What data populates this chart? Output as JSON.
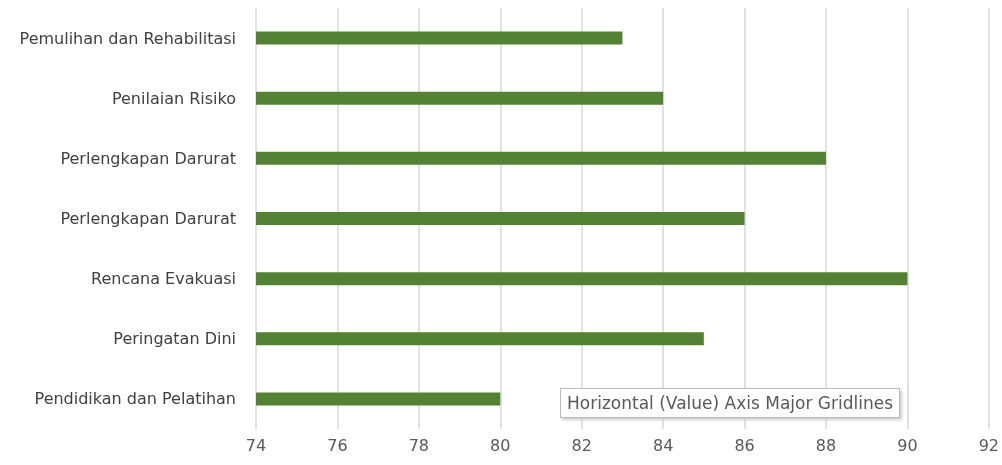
{
  "chart_data": {
    "type": "bar",
    "orientation": "horizontal",
    "categories": [
      "Pemulihan dan Rehabilitasi",
      "Penilaian Risiko",
      "Perlengkapan Darurat",
      "Perlengkapan Darurat",
      "Rencana Evakuasi",
      "Peringatan Dini",
      "Pendidikan dan Pelatihan"
    ],
    "values": [
      83,
      84,
      88,
      86,
      90,
      85,
      80
    ],
    "color": "#548235",
    "xlim": [
      74,
      92
    ],
    "xticks": [
      74,
      76,
      78,
      80,
      82,
      84,
      86,
      88,
      90,
      92
    ],
    "grid": "x",
    "annotations": [
      "Horizontal (Value) Axis Major Gridlines"
    ]
  }
}
